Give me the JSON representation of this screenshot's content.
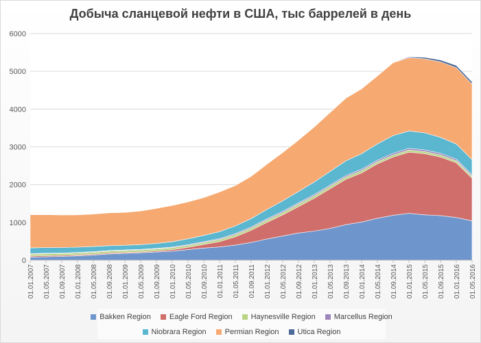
{
  "chart_data": {
    "type": "area",
    "stacked": true,
    "title": "Добыча сланцевой нефти в США, тыс баррелей в день",
    "xlabel": "",
    "ylabel": "",
    "ylim": [
      0,
      6000
    ],
    "yticks": [
      "0",
      "1000",
      "2000",
      "3000",
      "4000",
      "5000",
      "6000"
    ],
    "grid": true,
    "legend_position": "bottom",
    "x": [
      "01.01.2007",
      "01.05.2007",
      "01.09.2007",
      "01.01.2008",
      "01.05.2008",
      "01.09.2008",
      "01.01.2009",
      "01.05.2009",
      "01.09.2009",
      "01.01.2010",
      "01.05.2010",
      "01.09.2010",
      "01.01.2011",
      "01.05.2011",
      "01.09.2011",
      "01.01.2012",
      "01.05.2012",
      "01.09.2012",
      "01.01.2013",
      "01.05.2013",
      "01.09.2013",
      "01.01.2014",
      "01.05.2014",
      "01.09.2014",
      "01.01.2015",
      "01.05.2015",
      "01.09.2015",
      "01.01.2016",
      "01.05.2016"
    ],
    "series": [
      {
        "name": "Bakken Region",
        "color": "#6f96cc",
        "values": [
          80,
          90,
          100,
          115,
          135,
          165,
          180,
          195,
          215,
          240,
          280,
          320,
          350,
          400,
          470,
          560,
          640,
          720,
          770,
          840,
          940,
          1010,
          1110,
          1190,
          1240,
          1200,
          1180,
          1130,
          1040
        ]
      },
      {
        "name": "Eagle Ford Region",
        "color": "#d06e6b",
        "values": [
          30,
          28,
          26,
          25,
          25,
          25,
          25,
          25,
          30,
          40,
          60,
          95,
          140,
          220,
          320,
          440,
          560,
          700,
          870,
          1050,
          1200,
          1300,
          1440,
          1540,
          1620,
          1620,
          1550,
          1450,
          1130
        ]
      },
      {
        "name": "Haynesville Region",
        "color": "#b9d583",
        "values": [
          50,
          50,
          50,
          50,
          50,
          50,
          50,
          50,
          50,
          50,
          50,
          50,
          55,
          58,
          60,
          60,
          60,
          62,
          62,
          62,
          60,
          58,
          56,
          55,
          55,
          55,
          55,
          52,
          50
        ]
      },
      {
        "name": "Marcellus Region",
        "color": "#9b87bd",
        "values": [
          15,
          15,
          15,
          15,
          15,
          15,
          15,
          16,
          17,
          18,
          20,
          22,
          25,
          28,
          30,
          32,
          34,
          35,
          36,
          37,
          38,
          40,
          42,
          44,
          46,
          46,
          45,
          44,
          40
        ]
      },
      {
        "name": "Niobrara Region",
        "color": "#5bb6cf",
        "values": [
          150,
          150,
          145,
          140,
          135,
          130,
          125,
          125,
          130,
          140,
          155,
          170,
          185,
          200,
          220,
          250,
          275,
          300,
          330,
          360,
          390,
          410,
          430,
          470,
          460,
          450,
          420,
          400,
          400
        ]
      },
      {
        "name": "Permian Region",
        "color": "#f6a971",
        "values": [
          880,
          870,
          860,
          855,
          860,
          870,
          870,
          890,
          930,
          960,
          980,
          1000,
          1050,
          1070,
          1120,
          1200,
          1280,
          1360,
          1460,
          1560,
          1660,
          1720,
          1800,
          1930,
          1940,
          1960,
          2000,
          2020,
          2000
        ]
      },
      {
        "name": "Utica Region",
        "color": "#4d6a98",
        "values": [
          0,
          0,
          0,
          0,
          0,
          0,
          0,
          0,
          0,
          0,
          0,
          0,
          0,
          0,
          0,
          0,
          0,
          0,
          0,
          0,
          2,
          3,
          5,
          8,
          20,
          40,
          50,
          60,
          60
        ]
      }
    ]
  }
}
